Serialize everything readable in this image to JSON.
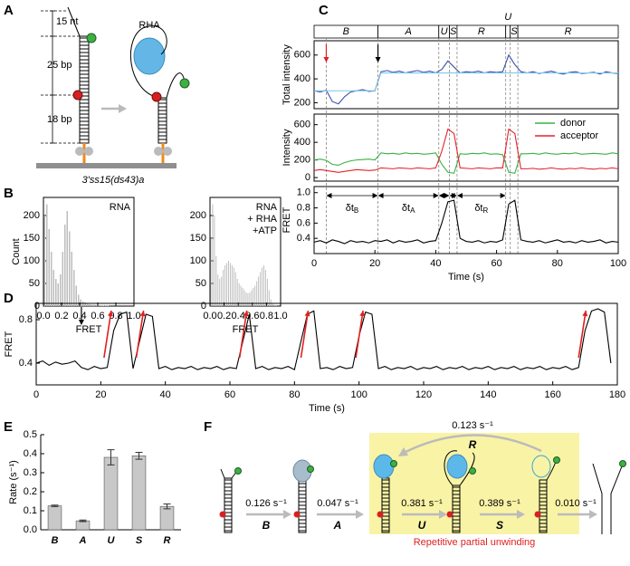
{
  "panel_labels": [
    "A",
    "B",
    "C",
    "D",
    "E",
    "F"
  ],
  "diagram_a": {
    "labels": {
      "top": "15 nt",
      "middle": "25 bp",
      "bottom": "18 bp",
      "protein": "RHA"
    },
    "caption": "3'ss15(ds43)a"
  },
  "chart_data": [
    {
      "type": "histogram",
      "annotation": [
        "RNA"
      ],
      "y_label": "Count",
      "x_label": "FRET",
      "color": "#bdbdbd",
      "bins": [
        0,
        0.025,
        0.05,
        0.075,
        0.1,
        0.125,
        0.15,
        0.175,
        0.2,
        0.225,
        0.25,
        0.275,
        0.3,
        0.325,
        0.35,
        0.375,
        0.4,
        0.425,
        0.45,
        0.475,
        0.5,
        0.525,
        0.55,
        0.575,
        0.6,
        0.625,
        0.65,
        0.675,
        0.7,
        0.725,
        0.75,
        0.775,
        0.8,
        0.825,
        0.85,
        0.875,
        0.9,
        0.925,
        0.95,
        0.975,
        1
      ],
      "values": [
        200,
        225,
        170,
        120,
        80,
        60,
        50,
        70,
        120,
        180,
        210,
        165,
        120,
        80,
        45,
        25,
        15,
        10,
        8,
        5,
        4,
        3,
        3,
        2,
        2,
        1,
        1,
        1,
        1,
        0,
        0,
        0,
        0,
        0,
        0,
        0,
        0,
        0,
        0,
        0
      ],
      "xlim": [
        0,
        1
      ],
      "ylim": [
        0,
        240
      ],
      "xticks": [
        {
          "value": 0,
          "label": "0.0"
        },
        0.2,
        0.4,
        0.6,
        0.8,
        {
          "value": 1,
          "label": "1.0"
        }
      ],
      "yticks": [
        0,
        50,
        100,
        150,
        200
      ]
    },
    {
      "type": "histogram",
      "annotation": [
        "RNA",
        "+ RHA",
        "+ATP"
      ],
      "x_label": "FRET",
      "color": "#bdbdbd",
      "bins": [
        0,
        0.025,
        0.05,
        0.075,
        0.1,
        0.125,
        0.15,
        0.175,
        0.2,
        0.225,
        0.25,
        0.275,
        0.3,
        0.325,
        0.35,
        0.375,
        0.4,
        0.425,
        0.45,
        0.475,
        0.5,
        0.525,
        0.55,
        0.575,
        0.6,
        0.625,
        0.65,
        0.675,
        0.7,
        0.725,
        0.75,
        0.775,
        0.8,
        0.825,
        0.85,
        0.875,
        0.9,
        0.925,
        0.95,
        0.975,
        1
      ],
      "values": [
        150,
        225,
        200,
        110,
        70,
        60,
        65,
        80,
        90,
        95,
        100,
        95,
        90,
        85,
        75,
        60,
        50,
        45,
        40,
        35,
        30,
        28,
        30,
        35,
        40,
        45,
        55,
        65,
        75,
        85,
        90,
        80,
        60,
        35,
        15,
        5,
        2,
        1,
        0,
        0
      ],
      "xlim": [
        0,
        1
      ],
      "ylim": [
        0,
        240
      ],
      "xticks": [
        {
          "value": 0,
          "label": "0.0"
        },
        0.2,
        0.4,
        0.6,
        0.8,
        {
          "value": 1,
          "label": "1.0"
        }
      ],
      "yticks": [
        0,
        50,
        100,
        150,
        200
      ]
    },
    {
      "type": "line",
      "y_label": "Total intensity",
      "x": [
        0,
        2,
        4,
        6,
        8,
        10,
        12,
        14,
        16,
        18,
        20,
        22,
        24,
        26,
        28,
        30,
        32,
        34,
        36,
        38,
        40,
        42,
        44,
        46,
        48,
        50,
        52,
        54,
        56,
        58,
        60,
        62,
        64,
        66,
        68,
        70,
        72,
        74,
        76,
        78,
        80,
        82,
        84,
        86,
        88,
        90,
        92,
        94,
        96,
        98,
        100
      ],
      "series": [
        {
          "color": "#3a4fb0",
          "values": [
            300,
            290,
            305,
            210,
            190,
            250,
            290,
            300,
            310,
            295,
            300,
            460,
            470,
            455,
            465,
            450,
            460,
            470,
            455,
            465,
            450,
            480,
            550,
            500,
            450,
            460,
            455,
            465,
            450,
            460,
            455,
            460,
            600,
            520,
            460,
            450,
            460,
            445,
            455,
            465,
            450,
            440,
            455,
            460,
            445,
            450,
            455,
            440,
            460,
            450,
            445
          ]
        },
        {
          "color": "#7fc8e8",
          "values": [
            300,
            300,
            300,
            300,
            300,
            300,
            300,
            300,
            300,
            300,
            300,
            450,
            450,
            450,
            450,
            450,
            450,
            450,
            450,
            450,
            450,
            450,
            450,
            450,
            450,
            450,
            450,
            450,
            450,
            450,
            450,
            450,
            450,
            450,
            450,
            450,
            450,
            450,
            450,
            450,
            450,
            450,
            450,
            450,
            450,
            450,
            450,
            450,
            450,
            450,
            450
          ]
        }
      ],
      "xlim": [
        0,
        100
      ],
      "ylim": [
        150,
        720
      ],
      "yticks": [
        200,
        400,
        600
      ],
      "phases": [
        {
          "label": "B",
          "start": 0,
          "end": 21
        },
        {
          "label": "A",
          "start": 21,
          "end": 41
        },
        {
          "label": "U",
          "start": 41,
          "end": 44.5
        },
        {
          "label": "S",
          "start": 44.5,
          "end": 47
        },
        {
          "label": "R",
          "start": 47,
          "end": 63
        },
        {
          "label": "U",
          "start": 63,
          "end": 64.5
        },
        {
          "label": "S",
          "start": 64.5,
          "end": 67
        },
        {
          "label": "R",
          "start": 67,
          "end": 100
        }
      ],
      "event_times": [
        4,
        21,
        41,
        44.5,
        47,
        63,
        64.5,
        67
      ],
      "arrows": [
        {
          "x": 4,
          "color": "#e02020"
        },
        {
          "x": 21,
          "color": "#000000"
        }
      ]
    },
    {
      "type": "line",
      "y_label": "Intensity",
      "legend": "upper right",
      "x": [
        0,
        2,
        4,
        6,
        8,
        10,
        12,
        14,
        16,
        18,
        20,
        22,
        24,
        26,
        28,
        30,
        32,
        34,
        36,
        38,
        40,
        42,
        44,
        46,
        48,
        50,
        52,
        54,
        56,
        58,
        60,
        62,
        64,
        66,
        68,
        70,
        72,
        74,
        76,
        78,
        80,
        82,
        84,
        86,
        88,
        90,
        92,
        94,
        96,
        98,
        100
      ],
      "series": [
        {
          "name": "donor",
          "color": "#3cb043",
          "values": [
            200,
            210,
            195,
            150,
            140,
            170,
            190,
            200,
            205,
            210,
            200,
            280,
            270,
            275,
            265,
            280,
            270,
            275,
            265,
            270,
            280,
            150,
            60,
            50,
            270,
            265,
            275,
            270,
            280,
            265,
            270,
            260,
            60,
            50,
            270,
            270,
            275,
            265,
            280,
            270,
            265,
            275,
            270,
            280,
            265,
            270,
            275,
            270,
            265,
            280,
            270
          ]
        },
        {
          "name": "acceptor",
          "color": "#e8202a",
          "values": [
            80,
            90,
            80,
            70,
            60,
            70,
            80,
            90,
            85,
            80,
            85,
            110,
            105,
            100,
            110,
            105,
            100,
            110,
            105,
            100,
            110,
            300,
            550,
            500,
            110,
            105,
            100,
            110,
            105,
            100,
            110,
            110,
            550,
            500,
            100,
            100,
            105,
            95,
            100,
            110,
            100,
            95,
            105,
            100,
            110,
            100,
            95,
            105,
            100,
            110,
            100
          ]
        }
      ],
      "xlim": [
        0,
        100
      ],
      "ylim": [
        -40,
        720
      ],
      "yticks": [
        0,
        200,
        400,
        600
      ]
    },
    {
      "type": "line",
      "y_label": "FRET",
      "x_label": "Time (s)",
      "x": [
        0,
        2,
        4,
        6,
        8,
        10,
        12,
        14,
        16,
        18,
        20,
        22,
        24,
        26,
        28,
        30,
        32,
        34,
        36,
        38,
        40,
        42,
        44,
        46,
        48,
        50,
        52,
        54,
        56,
        58,
        60,
        62,
        64,
        66,
        68,
        70,
        72,
        74,
        76,
        78,
        80,
        82,
        84,
        86,
        88,
        90,
        92,
        94,
        96,
        98,
        100
      ],
      "series": [
        {
          "color": "#000000",
          "values": [
            0.35,
            0.37,
            0.34,
            0.38,
            0.36,
            0.33,
            0.37,
            0.35,
            0.36,
            0.34,
            0.37,
            0.36,
            0.38,
            0.34,
            0.37,
            0.35,
            0.36,
            0.38,
            0.34,
            0.36,
            0.37,
            0.6,
            0.88,
            0.9,
            0.4,
            0.36,
            0.35,
            0.37,
            0.34,
            0.36,
            0.35,
            0.38,
            0.85,
            0.9,
            0.38,
            0.36,
            0.35,
            0.37,
            0.34,
            0.36,
            0.38,
            0.35,
            0.36,
            0.34,
            0.37,
            0.35,
            0.36,
            0.38,
            0.34,
            0.36,
            0.35
          ]
        }
      ],
      "xlim": [
        0,
        100
      ],
      "ylim": [
        0.2,
        1.08
      ],
      "xticks": [
        0,
        20,
        40,
        60,
        80,
        100
      ],
      "yticks": [
        0.4,
        0.6,
        0.8,
        {
          "value": 1,
          "label": "1.0"
        }
      ],
      "intervals": [
        {
          "start": 4,
          "end": 21,
          "label": "δt",
          "sub": "B"
        },
        {
          "start": 21,
          "end": 41,
          "label": "δt",
          "sub": "A"
        },
        {
          "start": 41,
          "end": 44.5
        },
        {
          "start": 44.5,
          "end": 47
        },
        {
          "start": 47,
          "end": 63,
          "label": "δt",
          "sub": "R"
        }
      ]
    },
    {
      "type": "line",
      "y_label": "FRET",
      "x_label": "Time (s)",
      "x": [
        0,
        2,
        4,
        6,
        8,
        10,
        12,
        14,
        16,
        18,
        20,
        22,
        24,
        26,
        28,
        30,
        32,
        34,
        36,
        38,
        40,
        42,
        44,
        46,
        48,
        50,
        52,
        54,
        56,
        58,
        60,
        62,
        64,
        66,
        68,
        70,
        72,
        74,
        76,
        78,
        80,
        82,
        84,
        86,
        88,
        90,
        92,
        94,
        96,
        98,
        100,
        102,
        104,
        106,
        108,
        110,
        112,
        114,
        116,
        118,
        120,
        122,
        124,
        126,
        128,
        130,
        132,
        134,
        136,
        138,
        140,
        142,
        144,
        146,
        148,
        150,
        152,
        154,
        156,
        158,
        160,
        162,
        164,
        166,
        168,
        170,
        172,
        174,
        176,
        178
      ],
      "series": [
        {
          "color": "#000000",
          "values": [
            0.4,
            0.42,
            0.38,
            0.41,
            0.39,
            0.4,
            0.42,
            0.36,
            0.34,
            0.37,
            0.35,
            0.36,
            0.7,
            0.85,
            0.87,
            0.35,
            0.6,
            0.85,
            0.83,
            0.35,
            0.37,
            0.34,
            0.36,
            0.35,
            0.37,
            0.34,
            0.36,
            0.35,
            0.37,
            0.34,
            0.36,
            0.35,
            0.6,
            0.85,
            0.35,
            0.37,
            0.34,
            0.36,
            0.35,
            0.37,
            0.34,
            0.6,
            0.85,
            0.88,
            0.35,
            0.36,
            0.34,
            0.37,
            0.35,
            0.36,
            0.65,
            0.87,
            0.85,
            0.35,
            0.37,
            0.34,
            0.36,
            0.35,
            0.37,
            0.34,
            0.36,
            0.35,
            0.37,
            0.34,
            0.36,
            0.35,
            0.37,
            0.34,
            0.36,
            0.35,
            0.37,
            0.34,
            0.36,
            0.35,
            0.37,
            0.34,
            0.36,
            0.35,
            0.37,
            0.34,
            0.36,
            0.35,
            0.37,
            0.34,
            0.36,
            0.7,
            0.88,
            0.9,
            0.87,
            0.4
          ]
        }
      ],
      "xlim": [
        0,
        180
      ],
      "ylim": [
        0.2,
        0.95
      ],
      "xticks": [
        0,
        20,
        40,
        60,
        80,
        100,
        120,
        140,
        160,
        180
      ],
      "yticks": [
        0.4,
        0.8
      ],
      "arrows": [
        {
          "x": 14,
          "color": "#000000"
        }
      ],
      "rise_arrows": {
        "color": "#e02020",
        "x": [
          21,
          31,
          63,
          82,
          99,
          168
        ]
      }
    },
    {
      "type": "bar",
      "y_label": "Rate (s⁻¹)",
      "categories": [
        "B",
        "A",
        "U",
        "S",
        "R"
      ],
      "values": [
        0.126,
        0.047,
        0.381,
        0.389,
        0.123
      ],
      "errors": [
        0.004,
        0.004,
        0.04,
        0.018,
        0.013
      ],
      "color": "#c8c8c8",
      "ylim": [
        0,
        0.5
      ],
      "yticks": [
        {
          "value": 0,
          "label": "0.0"
        },
        0.1,
        0.2,
        0.3,
        0.4,
        0.5
      ]
    }
  ],
  "diagram_f": {
    "steps": [
      {
        "rate": "0.126 s⁻¹",
        "label": "B"
      },
      {
        "rate": "0.047 s⁻¹",
        "label": "A"
      },
      {
        "rate": "0.381 s⁻¹",
        "label": "U"
      },
      {
        "rate": "0.389 s⁻¹",
        "label": "S"
      },
      {
        "rate": "0.123 s⁻¹",
        "label": "R"
      },
      {
        "rate": "0.010 s⁻¹"
      }
    ],
    "box_label": "Repetitive partial unwinding"
  }
}
